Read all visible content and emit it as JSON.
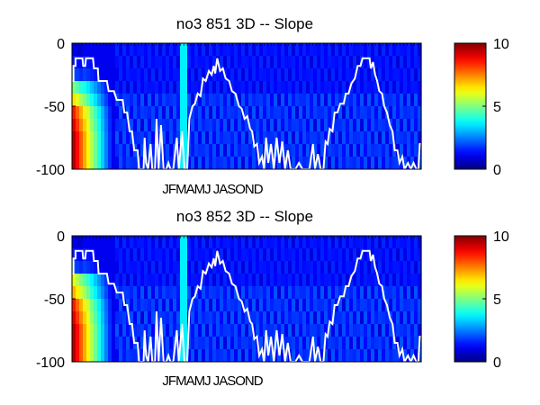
{
  "chart_data": [
    {
      "type": "heatmap",
      "title": "no3  851 3D   -- Slope",
      "xlabel": "JFMAMJ JASOND",
      "ylabel": "",
      "ylim": [
        -100,
        0
      ],
      "yticks": [
        "0",
        "-50",
        "-100"
      ],
      "colorbar": {
        "colormap": "jet",
        "range": [
          0,
          10
        ],
        "ticks": [
          "10",
          "5",
          "0"
        ]
      },
      "overlay_line_color": "#ffffff",
      "depth_bands": [
        -10,
        -20,
        -30,
        -40,
        -50,
        -60,
        -70,
        -80,
        -90,
        -100
      ],
      "left_edge_values": [
        1.0,
        1.5,
        2.0,
        5.0,
        6.5,
        8.5,
        9.0,
        9.5,
        9.5,
        9.5
      ]
    },
    {
      "type": "heatmap",
      "title": "no3  852 3D   -- Slope",
      "xlabel": "JFMAMJ JASOND",
      "ylabel": "",
      "ylim": [
        -100,
        0
      ],
      "yticks": [
        "0",
        "-50",
        "-100"
      ],
      "colorbar": {
        "colormap": "jet",
        "range": [
          0,
          10
        ],
        "ticks": [
          "10",
          "5",
          "0"
        ]
      },
      "overlay_line_color": "#ffffff",
      "depth_bands": [
        -10,
        -20,
        -30,
        -40,
        -50,
        -60,
        -70,
        -80,
        -90,
        -100
      ],
      "left_edge_values": [
        1.0,
        1.5,
        2.0,
        6.0,
        7.0,
        8.5,
        9.0,
        9.5,
        9.5,
        9.5
      ]
    }
  ]
}
